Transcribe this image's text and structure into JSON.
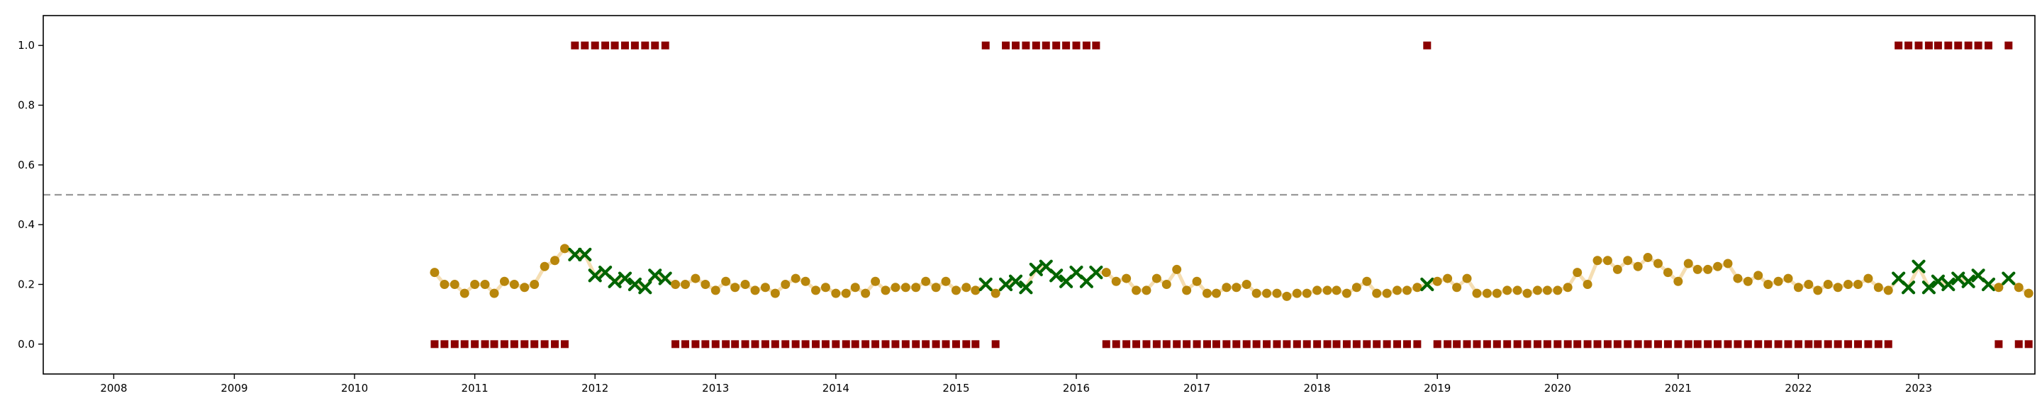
{
  "chart_data": {
    "type": "scatter",
    "title": "",
    "xlabel": "",
    "ylabel": "",
    "xlim": [
      "2007-06-01",
      "2023-12-20"
    ],
    "ylim": [
      -0.1,
      1.1
    ],
    "grid": false,
    "legend": "none",
    "x_ticks": [
      "2008",
      "2009",
      "2010",
      "2011",
      "2012",
      "2013",
      "2014",
      "2015",
      "2016",
      "2017",
      "2018",
      "2019",
      "2020",
      "2021",
      "2022",
      "2023"
    ],
    "y_ticks": [
      "0.0",
      "0.2",
      "0.4",
      "0.6",
      "0.8",
      "1.0"
    ],
    "reference_line": {
      "y": 0.5,
      "style": "dashed",
      "color": "#999999"
    },
    "colors": {
      "probability_line": "#f5deb3",
      "probability_dot": "#b8860b",
      "probability_cross": "#006400",
      "label_square": "#8b0000",
      "axis": "#000000"
    },
    "x": [
      "2010-09-01",
      "2010-10-01",
      "2010-11-01",
      "2010-12-01",
      "2011-01-01",
      "2011-02-01",
      "2011-03-01",
      "2011-04-01",
      "2011-05-01",
      "2011-06-01",
      "2011-07-01",
      "2011-08-01",
      "2011-09-01",
      "2011-10-01",
      "2011-11-01",
      "2011-12-01",
      "2012-01-01",
      "2012-02-01",
      "2012-03-01",
      "2012-04-01",
      "2012-05-01",
      "2012-06-01",
      "2012-07-01",
      "2012-08-01",
      "2012-09-01",
      "2012-10-01",
      "2012-11-01",
      "2012-12-01",
      "2013-01-01",
      "2013-02-01",
      "2013-03-01",
      "2013-04-01",
      "2013-05-01",
      "2013-06-01",
      "2013-07-01",
      "2013-08-01",
      "2013-09-01",
      "2013-10-01",
      "2013-11-01",
      "2013-12-01",
      "2014-01-01",
      "2014-02-01",
      "2014-03-01",
      "2014-04-01",
      "2014-05-01",
      "2014-06-01",
      "2014-07-01",
      "2014-08-01",
      "2014-09-01",
      "2014-10-01",
      "2014-11-01",
      "2014-12-01",
      "2015-01-01",
      "2015-02-01",
      "2015-03-01",
      "2015-04-01",
      "2015-05-01",
      "2015-06-01",
      "2015-07-01",
      "2015-08-01",
      "2015-09-01",
      "2015-10-01",
      "2015-11-01",
      "2015-12-01",
      "2016-01-01",
      "2016-02-01",
      "2016-03-01",
      "2016-04-01",
      "2016-05-01",
      "2016-06-01",
      "2016-07-01",
      "2016-08-01",
      "2016-09-01",
      "2016-10-01",
      "2016-11-01",
      "2016-12-01",
      "2017-01-01",
      "2017-02-01",
      "2017-03-01",
      "2017-04-01",
      "2017-05-01",
      "2017-06-01",
      "2017-07-01",
      "2017-08-01",
      "2017-09-01",
      "2017-10-01",
      "2017-11-01",
      "2017-12-01",
      "2018-01-01",
      "2018-02-01",
      "2018-03-01",
      "2018-04-01",
      "2018-05-01",
      "2018-06-01",
      "2018-07-01",
      "2018-08-01",
      "2018-09-01",
      "2018-10-01",
      "2018-11-01",
      "2018-12-01",
      "2019-01-01",
      "2019-02-01",
      "2019-03-01",
      "2019-04-01",
      "2019-05-01",
      "2019-06-01",
      "2019-07-01",
      "2019-08-01",
      "2019-09-01",
      "2019-10-01",
      "2019-11-01",
      "2019-12-01",
      "2020-01-01",
      "2020-02-01",
      "2020-03-01",
      "2020-04-01",
      "2020-05-01",
      "2020-06-01",
      "2020-07-01",
      "2020-08-01",
      "2020-09-01",
      "2020-10-01",
      "2020-11-01",
      "2020-12-01",
      "2021-01-01",
      "2021-02-01",
      "2021-03-01",
      "2021-04-01",
      "2021-05-01",
      "2021-06-01",
      "2021-07-01",
      "2021-08-01",
      "2021-09-01",
      "2021-10-01",
      "2021-11-01",
      "2021-12-01",
      "2022-01-01",
      "2022-02-01",
      "2022-03-01",
      "2022-04-01",
      "2022-05-01",
      "2022-06-01",
      "2022-07-01",
      "2022-08-01",
      "2022-09-01",
      "2022-10-01",
      "2022-11-01",
      "2022-12-01",
      "2023-01-01",
      "2023-02-01",
      "2023-03-01",
      "2023-04-01",
      "2023-05-01",
      "2023-06-01",
      "2023-07-01",
      "2023-08-01",
      "2023-09-01",
      "2023-10-01",
      "2023-11-01",
      "2023-12-01"
    ],
    "series": [
      {
        "role": "probability",
        "values": [
          0.24,
          0.2,
          0.2,
          0.17,
          0.2,
          0.2,
          0.17,
          0.21,
          0.2,
          0.19,
          0.2,
          0.26,
          0.28,
          0.32,
          0.3,
          0.3,
          0.23,
          0.24,
          0.21,
          0.22,
          0.2,
          0.19,
          0.23,
          0.22,
          0.2,
          0.2,
          0.22,
          0.2,
          0.18,
          0.21,
          0.19,
          0.2,
          0.18,
          0.19,
          0.17,
          0.2,
          0.22,
          0.21,
          0.18,
          0.19,
          0.17,
          0.17,
          0.19,
          0.17,
          0.21,
          0.18,
          0.19,
          0.19,
          0.19,
          0.21,
          0.19,
          0.21,
          0.18,
          0.19,
          0.18,
          0.2,
          0.17,
          0.2,
          0.21,
          0.19,
          0.25,
          0.26,
          0.23,
          0.21,
          0.24,
          0.21,
          0.24,
          0.24,
          0.21,
          0.22,
          0.18,
          0.18,
          0.22,
          0.2,
          0.25,
          0.18,
          0.21,
          0.17,
          0.17,
          0.19,
          0.19,
          0.2,
          0.17,
          0.17,
          0.17,
          0.16,
          0.17,
          0.17,
          0.18,
          0.18,
          0.18,
          0.17,
          0.19,
          0.21,
          0.17,
          0.17,
          0.18,
          0.18,
          0.19,
          0.2,
          0.21,
          0.22,
          0.19,
          0.22,
          0.17,
          0.17,
          0.17,
          0.18,
          0.18,
          0.17,
          0.18,
          0.18,
          0.18,
          0.19,
          0.24,
          0.2,
          0.28,
          0.28,
          0.25,
          0.28,
          0.26,
          0.29,
          0.27,
          0.24,
          0.21,
          0.27,
          0.25,
          0.25,
          0.26,
          0.27,
          0.22,
          0.21,
          0.23,
          0.2,
          0.21,
          0.22,
          0.19,
          0.2,
          0.18,
          0.2,
          0.19,
          0.2,
          0.2,
          0.22,
          0.19,
          0.18,
          0.22,
          0.19,
          0.26,
          0.19,
          0.21,
          0.2,
          0.22,
          0.21,
          0.23,
          0.2,
          0.19,
          0.22,
          0.19,
          0.17
        ],
        "marker": [
          "o",
          "o",
          "o",
          "o",
          "o",
          "o",
          "o",
          "o",
          "o",
          "o",
          "o",
          "o",
          "o",
          "o",
          "x",
          "x",
          "x",
          "x",
          "x",
          "x",
          "x",
          "x",
          "x",
          "x",
          "o",
          "o",
          "o",
          "o",
          "o",
          "o",
          "o",
          "o",
          "o",
          "o",
          "o",
          "o",
          "o",
          "o",
          "o",
          "o",
          "o",
          "o",
          "o",
          "o",
          "o",
          "o",
          "o",
          "o",
          "o",
          "o",
          "o",
          "o",
          "o",
          "o",
          "o",
          "x",
          "o",
          "x",
          "x",
          "x",
          "x",
          "x",
          "x",
          "x",
          "x",
          "x",
          "x",
          "o",
          "o",
          "o",
          "o",
          "o",
          "o",
          "o",
          "o",
          "o",
          "o",
          "o",
          "o",
          "o",
          "o",
          "o",
          "o",
          "o",
          "o",
          "o",
          "o",
          "o",
          "o",
          "o",
          "o",
          "o",
          "o",
          "o",
          "o",
          "o",
          "o",
          "o",
          "o",
          "x",
          "o",
          "o",
          "o",
          "o",
          "o",
          "o",
          "o",
          "o",
          "o",
          "o",
          "o",
          "o",
          "o",
          "o",
          "o",
          "o",
          "o",
          "o",
          "o",
          "o",
          "o",
          "o",
          "o",
          "o",
          "o",
          "o",
          "o",
          "o",
          "o",
          "o",
          "o",
          "o",
          "o",
          "o",
          "o",
          "o",
          "o",
          "o",
          "o",
          "o",
          "o",
          "o",
          "o",
          "o",
          "o",
          "o",
          "x",
          "x",
          "x",
          "x",
          "x",
          "x",
          "x",
          "x",
          "x",
          "x",
          "o",
          "x",
          "o",
          "o"
        ]
      },
      {
        "role": "label",
        "values": [
          0,
          0,
          0,
          0,
          0,
          0,
          0,
          0,
          0,
          0,
          0,
          0,
          0,
          0,
          1,
          1,
          1,
          1,
          1,
          1,
          1,
          1,
          1,
          1,
          0,
          0,
          0,
          0,
          0,
          0,
          0,
          0,
          0,
          0,
          0,
          0,
          0,
          0,
          0,
          0,
          0,
          0,
          0,
          0,
          0,
          0,
          0,
          0,
          0,
          0,
          0,
          0,
          0,
          0,
          0,
          1,
          0,
          1,
          1,
          1,
          1,
          1,
          1,
          1,
          1,
          1,
          1,
          0,
          0,
          0,
          0,
          0,
          0,
          0,
          0,
          0,
          0,
          0,
          0,
          0,
          0,
          0,
          0,
          0,
          0,
          0,
          0,
          0,
          0,
          0,
          0,
          0,
          0,
          0,
          0,
          0,
          0,
          0,
          0,
          1,
          0,
          0,
          0,
          0,
          0,
          0,
          0,
          0,
          0,
          0,
          0,
          0,
          0,
          0,
          0,
          0,
          0,
          0,
          0,
          0,
          0,
          0,
          0,
          0,
          0,
          0,
          0,
          0,
          0,
          0,
          0,
          0,
          0,
          0,
          0,
          0,
          0,
          0,
          0,
          0,
          0,
          0,
          0,
          0,
          0,
          0,
          1,
          1,
          1,
          1,
          1,
          1,
          1,
          1,
          1,
          1,
          0,
          1,
          0,
          0
        ]
      }
    ]
  }
}
